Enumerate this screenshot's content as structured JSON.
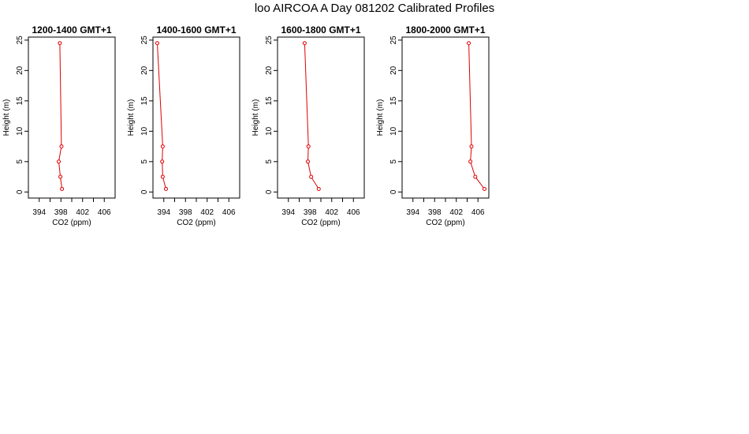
{
  "title": "loo AIRCOA A  Day 081202  Calibrated Profiles",
  "colors": {
    "series": "#dd0000",
    "axis": "#000000",
    "background": "#ffffff"
  },
  "chart_data": [
    {
      "type": "line",
      "title": "1200-1400 GMT+1",
      "xlabel": "CO2 (ppm)",
      "ylabel": "Height (m)",
      "xlim": [
        392,
        408
      ],
      "ylim": [
        -1,
        25.5
      ],
      "xticks": [
        394,
        398,
        402,
        406
      ],
      "xticks_minor": [
        394,
        396,
        398,
        400,
        402,
        404,
        406
      ],
      "yticks": [
        0,
        5,
        10,
        15,
        20,
        25
      ],
      "points": [
        {
          "x": 398.2,
          "y": 0.5
        },
        {
          "x": 397.9,
          "y": 2.5
        },
        {
          "x": 397.6,
          "y": 5
        },
        {
          "x": 398.1,
          "y": 7.5
        },
        {
          "x": 397.8,
          "y": 24.5
        }
      ]
    },
    {
      "type": "line",
      "title": "1400-1600 GMT+1",
      "xlabel": "CO2 (ppm)",
      "ylabel": "Height (m)",
      "xlim": [
        392,
        408
      ],
      "ylim": [
        -1,
        25.5
      ],
      "xticks": [
        394,
        398,
        402,
        406
      ],
      "xticks_minor": [
        394,
        396,
        398,
        400,
        402,
        404,
        406
      ],
      "yticks": [
        0,
        5,
        10,
        15,
        20,
        25
      ],
      "points": [
        {
          "x": 394.4,
          "y": 0.5
        },
        {
          "x": 393.8,
          "y": 2.5
        },
        {
          "x": 393.7,
          "y": 5
        },
        {
          "x": 393.8,
          "y": 7.5
        },
        {
          "x": 392.8,
          "y": 24.5
        }
      ]
    },
    {
      "type": "line",
      "title": "1600-1800 GMT+1",
      "xlabel": "CO2 (ppm)",
      "ylabel": "Height (m)",
      "xlim": [
        392,
        408
      ],
      "ylim": [
        -1,
        25.5
      ],
      "xticks": [
        394,
        398,
        402,
        406
      ],
      "xticks_minor": [
        394,
        396,
        398,
        400,
        402,
        404,
        406
      ],
      "yticks": [
        0,
        5,
        10,
        15,
        20,
        25
      ],
      "points": [
        {
          "x": 399.6,
          "y": 0.5
        },
        {
          "x": 398.2,
          "y": 2.5
        },
        {
          "x": 397.6,
          "y": 5
        },
        {
          "x": 397.7,
          "y": 7.5
        },
        {
          "x": 397.0,
          "y": 24.5
        }
      ]
    },
    {
      "type": "line",
      "title": "1800-2000 GMT+1",
      "xlabel": "CO2 (ppm)",
      "ylabel": "Height (m)",
      "xlim": [
        392,
        408
      ],
      "ylim": [
        -1,
        25.5
      ],
      "xticks": [
        394,
        398,
        402,
        406
      ],
      "xticks_minor": [
        394,
        396,
        398,
        400,
        402,
        404,
        406
      ],
      "yticks": [
        0,
        5,
        10,
        15,
        20,
        25
      ],
      "points": [
        {
          "x": 407.2,
          "y": 0.5
        },
        {
          "x": 405.5,
          "y": 2.5
        },
        {
          "x": 404.6,
          "y": 5
        },
        {
          "x": 404.8,
          "y": 7.5
        },
        {
          "x": 404.3,
          "y": 24.5
        }
      ]
    }
  ]
}
